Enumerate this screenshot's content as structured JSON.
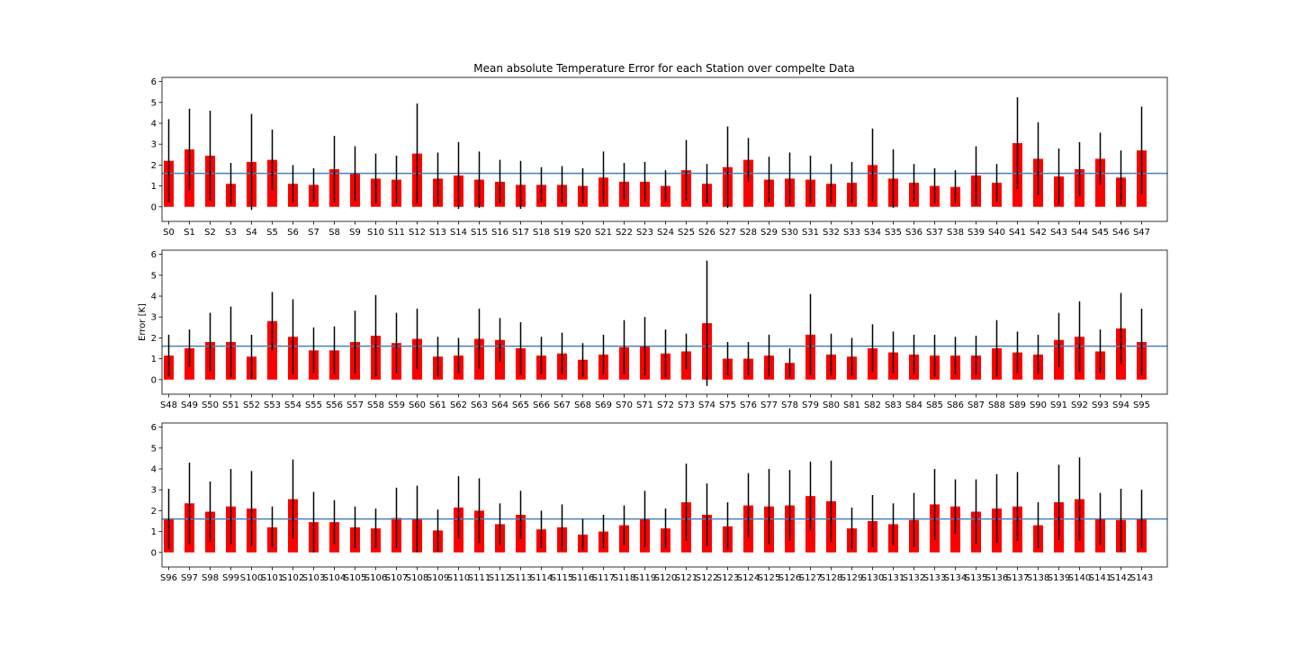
{
  "chart_data": [
    {
      "type": "bar",
      "title": "Mean absolute Temperature Error for each Station over compelte Data",
      "ylabel": "",
      "ylim": [
        -0.7,
        6.2
      ],
      "yticks": [
        0,
        1,
        2,
        3,
        4,
        5,
        6
      ],
      "mean_line": 1.6,
      "bar_color": "#ff0000",
      "errorbar_color": "#000000",
      "mean_line_color": "#4a7fb0",
      "categories": [
        "S0",
        "S1",
        "S2",
        "S3",
        "S4",
        "S5",
        "S6",
        "S7",
        "S8",
        "S9",
        "S10",
        "S11",
        "S12",
        "S13",
        "S14",
        "S15",
        "S16",
        "S17",
        "S18",
        "S19",
        "S20",
        "S21",
        "S22",
        "S23",
        "S24",
        "S25",
        "S26",
        "S27",
        "S28",
        "S29",
        "S30",
        "S31",
        "S32",
        "S33",
        "S34",
        "S35",
        "S36",
        "S37",
        "S38",
        "S39",
        "S40",
        "S41",
        "S42",
        "S43",
        "S44",
        "S45",
        "S46",
        "S47"
      ],
      "values": [
        2.2,
        2.75,
        2.45,
        1.1,
        2.15,
        2.25,
        1.1,
        1.05,
        1.8,
        1.6,
        1.35,
        1.3,
        2.55,
        1.35,
        1.5,
        1.3,
        1.2,
        1.05,
        1.05,
        1.05,
        1.0,
        1.4,
        1.2,
        1.2,
        1.0,
        1.75,
        1.1,
        1.9,
        2.25,
        1.3,
        1.35,
        1.3,
        1.1,
        1.15,
        2.0,
        1.35,
        1.15,
        1.0,
        0.95,
        1.5,
        1.15,
        3.05,
        2.3,
        1.45,
        1.8,
        2.3,
        1.4,
        2.7
      ],
      "errors": [
        2.0,
        1.95,
        2.15,
        1.0,
        2.3,
        1.45,
        0.9,
        0.8,
        1.6,
        1.3,
        1.2,
        1.15,
        2.4,
        1.25,
        1.6,
        1.35,
        1.05,
        1.15,
        0.85,
        0.9,
        0.85,
        1.25,
        0.9,
        0.95,
        0.75,
        1.45,
        0.95,
        1.95,
        1.05,
        1.1,
        1.25,
        1.15,
        0.95,
        1.0,
        1.75,
        1.4,
        0.9,
        0.85,
        0.8,
        1.4,
        0.9,
        2.2,
        1.75,
        1.35,
        1.3,
        1.25,
        1.3,
        2.1
      ]
    },
    {
      "type": "bar",
      "title": "",
      "ylabel": "Error [K]",
      "ylim": [
        -0.7,
        6.2
      ],
      "yticks": [
        0,
        1,
        2,
        3,
        4,
        5,
        6
      ],
      "mean_line": 1.6,
      "bar_color": "#ff0000",
      "errorbar_color": "#000000",
      "mean_line_color": "#4a7fb0",
      "categories": [
        "S48",
        "S49",
        "S50",
        "S51",
        "S52",
        "S53",
        "S54",
        "S55",
        "S56",
        "S57",
        "S58",
        "S59",
        "S60",
        "S61",
        "S62",
        "S63",
        "S64",
        "S65",
        "S66",
        "S67",
        "S68",
        "S69",
        "S70",
        "S71",
        "S72",
        "S73",
        "S74",
        "S75",
        "S76",
        "S77",
        "S78",
        "S79",
        "S80",
        "S81",
        "S82",
        "S83",
        "S84",
        "S85",
        "S86",
        "S87",
        "S88",
        "S89",
        "S90",
        "S91",
        "S92",
        "S93",
        "S94",
        "S95"
      ],
      "values": [
        1.15,
        1.5,
        1.8,
        1.8,
        1.1,
        2.8,
        2.05,
        1.4,
        1.4,
        1.8,
        2.1,
        1.75,
        1.95,
        1.1,
        1.15,
        1.95,
        1.9,
        1.5,
        1.15,
        1.25,
        0.95,
        1.2,
        1.55,
        1.6,
        1.25,
        1.35,
        2.7,
        1.0,
        1.0,
        1.15,
        0.8,
        2.15,
        1.2,
        1.1,
        1.5,
        1.3,
        1.2,
        1.15,
        1.15,
        1.15,
        1.5,
        1.3,
        1.2,
        1.9,
        2.05,
        1.35,
        2.45,
        1.8
      ],
      "errors": [
        1.0,
        0.9,
        1.4,
        1.7,
        1.05,
        1.4,
        1.8,
        1.1,
        1.15,
        1.5,
        1.95,
        1.45,
        1.45,
        0.95,
        0.85,
        1.45,
        1.05,
        1.25,
        0.9,
        1.0,
        0.8,
        0.95,
        1.3,
        1.4,
        1.15,
        0.85,
        3.0,
        0.8,
        0.8,
        1.0,
        0.7,
        1.95,
        1.0,
        0.9,
        1.15,
        1.0,
        0.95,
        1.0,
        0.9,
        0.95,
        1.35,
        1.0,
        0.95,
        1.3,
        1.7,
        1.05,
        1.7,
        1.6
      ]
    },
    {
      "type": "bar",
      "title": "",
      "ylabel": "",
      "ylim": [
        -0.7,
        6.2
      ],
      "yticks": [
        0,
        1,
        2,
        3,
        4,
        5,
        6
      ],
      "mean_line": 1.6,
      "bar_color": "#ff0000",
      "errorbar_color": "#000000",
      "mean_line_color": "#4a7fb0",
      "categories": [
        "S96",
        "S97",
        "S98",
        "S99",
        "S100",
        "S101",
        "S102",
        "S103",
        "S104",
        "S105",
        "S106",
        "S107",
        "S108",
        "S109",
        "S110",
        "S111",
        "S112",
        "S113",
        "S114",
        "S115",
        "S116",
        "S117",
        "S118",
        "S119",
        "S120",
        "S121",
        "S122",
        "S123",
        "S124",
        "S125",
        "S126",
        "S127",
        "S128",
        "S129",
        "S130",
        "S131",
        "S132",
        "S133",
        "S134",
        "S135",
        "S136",
        "S137",
        "S138",
        "S139",
        "S140",
        "S141",
        "S142",
        "S143"
      ],
      "values": [
        1.6,
        2.35,
        1.95,
        2.2,
        2.1,
        1.2,
        2.55,
        1.45,
        1.45,
        1.2,
        1.15,
        1.65,
        1.6,
        1.05,
        2.15,
        2.0,
        1.35,
        1.8,
        1.1,
        1.2,
        0.85,
        1.0,
        1.3,
        1.6,
        1.15,
        2.4,
        1.8,
        1.25,
        2.25,
        2.2,
        2.25,
        2.7,
        2.45,
        1.15,
        1.5,
        1.35,
        1.55,
        2.3,
        2.2,
        1.95,
        2.1,
        2.2,
        1.3,
        2.4,
        2.55,
        1.6,
        1.55,
        1.6
      ],
      "errors": [
        1.45,
        1.95,
        1.45,
        1.8,
        1.8,
        1.0,
        1.9,
        1.45,
        1.05,
        1.0,
        0.95,
        1.45,
        1.6,
        1.0,
        1.5,
        1.55,
        1.0,
        1.15,
        0.9,
        1.1,
        0.75,
        0.8,
        0.95,
        1.35,
        0.95,
        1.85,
        1.5,
        1.15,
        1.55,
        1.8,
        1.7,
        1.65,
        1.95,
        1.0,
        1.25,
        1.0,
        1.3,
        1.7,
        1.3,
        1.55,
        1.65,
        1.65,
        1.1,
        1.8,
        2.0,
        1.25,
        1.5,
        1.4
      ]
    }
  ]
}
